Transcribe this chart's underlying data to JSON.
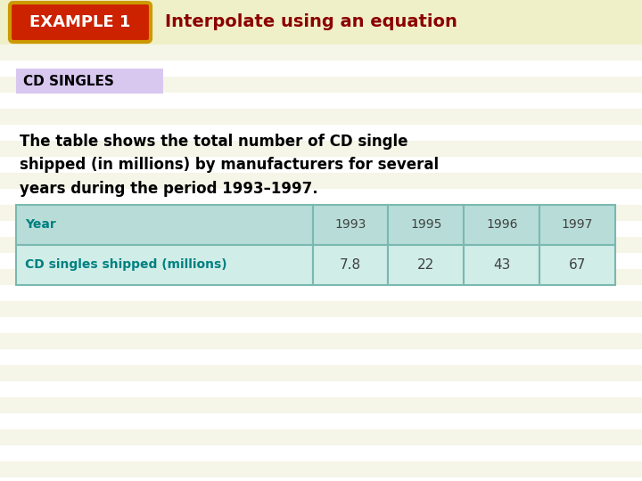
{
  "bg_color": "#f5f5d0",
  "stripe_colors": [
    "#f0f0c8",
    "#f8f8dc"
  ],
  "stripe_count": 30,
  "header_bg": "#f0f0c8",
  "example_label": "EXAMPLE 1",
  "example_bg": "#cc2200",
  "example_border": "#cc9900",
  "example_text_color": "#ffffff",
  "title_text": "Interpolate using an equation",
  "title_color": "#8B0000",
  "cd_singles_label": "CD SINGLES",
  "cd_singles_bg": "#d8c8f0",
  "cd_singles_text_color": "#000000",
  "body_text": "The table shows the total number of CD single\nshipped (in millions) by manufacturers for several\nyears during the period 1993–1997.",
  "body_text_color": "#000000",
  "table_header_row": [
    "Year",
    "1993",
    "1995",
    "1996",
    "1997"
  ],
  "table_data_row": [
    "CD singles shipped (millions)",
    "7.8",
    "22",
    "43",
    "67"
  ],
  "table_bg": "#b8ddd8",
  "table_cell_bg": "#d0ede8",
  "table_border_color": "#7ab8b0",
  "table_text_color_header": "#008080",
  "table_text_color_data_col0": "#008080",
  "table_text_color_data": "#000000",
  "white_bg": "#ffffff"
}
